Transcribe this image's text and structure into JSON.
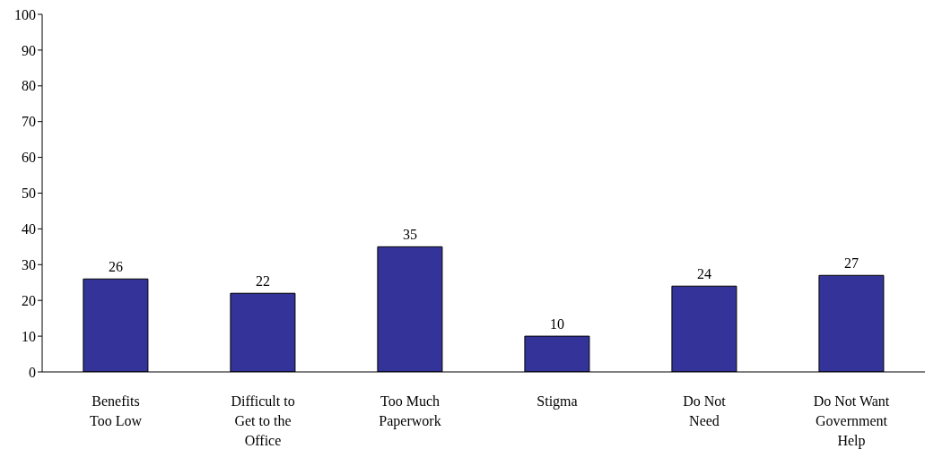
{
  "chart_data": {
    "type": "bar",
    "categories": [
      "Benefits\nToo Low",
      "Difficult to\nGet to the\nOffice",
      "Too Much\nPaperwork",
      "Stigma",
      "Do Not\nNeed",
      "Do Not Want\nGovernment\nHelp"
    ],
    "values": [
      26,
      22,
      35,
      10,
      24,
      27
    ],
    "color": "#333399",
    "ylim": [
      0,
      100
    ],
    "yticks": [
      0,
      10,
      20,
      30,
      40,
      50,
      60,
      70,
      80,
      90,
      100
    ],
    "data_labels": true,
    "grid": false,
    "legend": false
  }
}
